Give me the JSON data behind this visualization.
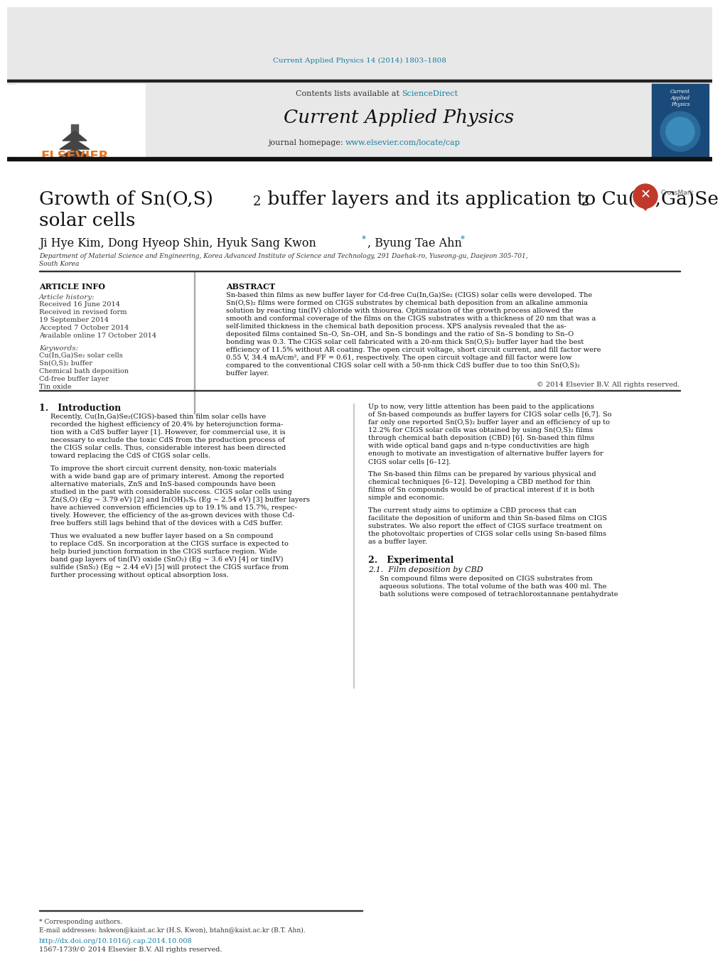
{
  "header_citation": "Current Applied Physics 14 (2014) 1803–1808",
  "journal_name": "Current Applied Physics",
  "journal_homepage_text": "journal homepage: ",
  "journal_homepage_url": "www.elsevier.com/locate/cap",
  "contents_text": "Contents lists available at ",
  "contents_url": "ScienceDirect",
  "elsevier_text": "ELSEVIER",
  "title_line1": "Growth of Sn(O,S)",
  "title_sub1": "2",
  "title_line1b": " buffer layers and its application to Cu(In,Ga)Se",
  "title_sub2": "2",
  "title_line2": "solar cells",
  "authors": "Ji Hye Kim, Dong Hyeop Shin, Hyuk Sang Kwon",
  "author_star1": "*",
  "authors2": ", Byung Tae Ahn",
  "author_star2": "*",
  "affiliation_line1": "Department of Material Science and Engineering, Korea Advanced Institute of Science and Technology, 291 Daehak-ro, Yuseong-gu, Daejeon 305-701,",
  "affiliation_line2": "South Korea",
  "article_info_title": "ARTICLE INFO",
  "article_history_title": "Article history:",
  "hist_flat": [
    "Received 16 June 2014",
    "Received in revised form",
    "19 September 2014",
    "Accepted 7 October 2014",
    "Available online 17 October 2014"
  ],
  "keywords_title": "Keywords:",
  "kw_items": [
    "Cu(In,Ga)Se₂ solar cells",
    "Sn(O,S)₂ buffer",
    "Chemical bath deposition",
    "Cd-free buffer layer",
    "Tin oxide"
  ],
  "abstract_title": "ABSTRACT",
  "abstract_lines": [
    "Sn-based thin films as new buffer layer for Cd-free Cu(In,Ga)Se₂ (CIGS) solar cells were developed. The",
    "Sn(O,S)₂ films were formed on CIGS substrates by chemical bath deposition from an alkaline ammonia",
    "solution by reacting tin(IV) chloride with thiourea. Optimization of the growth process allowed the",
    "smooth and conformal coverage of the films on the CIGS substrates with a thickness of 20 nm that was a",
    "self-limited thickness in the chemical bath deposition process. XPS analysis revealed that the as-",
    "deposited films contained Sn–O, Sn–OH, and Sn–S bondings and the ratio of Sn–S bonding to Sn–O",
    "bonding was 0.3. The CIGS solar cell fabricated with a 20-nm thick Sn(O,S)₂ buffer layer had the best",
    "efficiency of 11.5% without AR coating. The open circuit voltage, short circuit current, and fill factor were",
    "0.55 V, 34.4 mA/cm², and FF = 0.61, respectively. The open circuit voltage and fill factor were low",
    "compared to the conventional CIGS solar cell with a 50-nm thick CdS buffer due to too thin Sn(O,S)₂",
    "buffer layer."
  ],
  "copyright": "© 2014 Elsevier B.V. All rights reserved.",
  "section1_title": "1.   Introduction",
  "para1_lines": [
    "Recently, Cu(In,Ga)Se₂(CIGS)-based thin film solar cells have",
    "recorded the highest efficiency of 20.4% by heterojunction forma-",
    "tion with a CdS buffer layer [1]. However, for commercial use, it is",
    "necessary to exclude the toxic CdS from the production process of",
    "the CIGS solar cells. Thus, considerable interest has been directed",
    "toward replacing the CdS of CIGS solar cells."
  ],
  "para2_lines": [
    "To improve the short circuit current density, non-toxic materials",
    "with a wide band gap are of primary interest. Among the reported",
    "alternative materials, ZnS and InS-based compounds have been",
    "studied in the past with considerable success. CIGS solar cells using",
    "Zn(S,O) (Eg ~ 3.79 eV) [2] and In(OH)ₓSₕ (Eg ~ 2.54 eV) [3] buffer layers",
    "have achieved conversion efficiencies up to 19.1% and 15.7%, respec-",
    "tively. However, the efficiency of the as-grown devices with those Cd-",
    "free buffers still lags behind that of the devices with a CdS buffer."
  ],
  "para3_lines": [
    "Thus we evaluated a new buffer layer based on a Sn compound",
    "to replace CdS. Sn incorporation at the CIGS surface is expected to",
    "help buried junction formation in the CIGS surface region. Wide",
    "band gap layers of tin(IV) oxide (SnO₂) (Eg ~ 3.6 eV) [4] or tin(IV)",
    "sulfide (SnS₂) (Eg ~ 2.44 eV) [5] will protect the CIGS surface from",
    "further processing without optical absorption loss."
  ],
  "right_para1_lines": [
    "Up to now, very little attention has been paid to the applications",
    "of Sn-based compounds as buffer layers for CIGS solar cells [6,7]. So",
    "far only one reported Sn(O,S)₂ buffer layer and an efficiency of up to",
    "12.2% for CIGS solar cells was obtained by using Sn(O,S)₂ films",
    "through chemical bath deposition (CBD) [6]. Sn-based thin films",
    "with wide optical band gaps and n-type conductivities are high",
    "enough to motivate an investigation of alternative buffer layers for",
    "CIGS solar cells [6–12]."
  ],
  "right_para2_lines": [
    "The Sn-based thin films can be prepared by various physical and",
    "chemical techniques [6–12]. Developing a CBD method for thin",
    "films of Sn compounds would be of practical interest if it is both",
    "simple and economic."
  ],
  "right_para3_lines": [
    "The current study aims to optimize a CBD process that can",
    "facilitate the deposition of uniform and thin Sn-based films on CIGS",
    "substrates. We also report the effect of CIGS surface treatment on",
    "the photovoltaic properties of CIGS solar cells using Sn-based films",
    "as a buffer layer."
  ],
  "section2_title": "2.   Experimental",
  "section21_title": "2.1.  Film deposition by CBD",
  "exp_lines": [
    "Sn compound films were deposited on CIGS substrates from",
    "aqueous solutions. The total volume of the bath was 400 ml. The",
    "bath solutions were composed of tetrachlorostannane pentahydrate"
  ],
  "footnote_text": "* Corresponding authors.",
  "footnote_email": "E-mail addresses: hskwon@kaist.ac.kr (H.S. Kwon), btahn@kaist.ac.kr (B.T. Ahn).",
  "doi_text": "http://dx.doi.org/10.1016/j.cap.2014.10.008",
  "issn_text": "1567-1739/© 2014 Elsevier B.V. All rights reserved.",
  "color_teal": "#1a7fa0",
  "color_orange": "#e87722",
  "color_black": "#000000",
  "color_dark": "#1a1a1a",
  "color_gray_bg": "#e8e8e8",
  "bg_color": "#ffffff"
}
